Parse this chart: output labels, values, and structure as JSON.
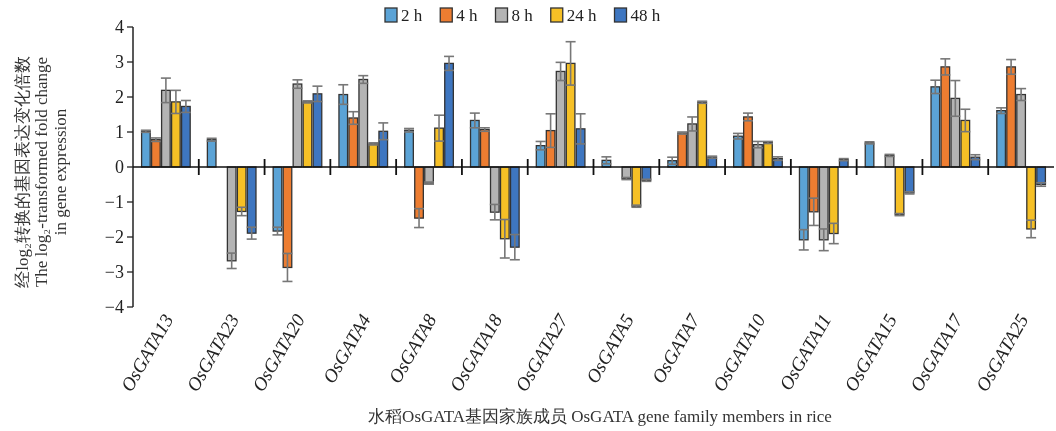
{
  "chart_data": {
    "type": "bar",
    "xlabel": "水稻OsGATA基因家族成员  OsGATA gene family members in rice",
    "ylabel": "经log₂转换的基因表达变化倍数\nThe log₂-transformed fold change\nin gene expression",
    "categories": [
      "OsGATA13",
      "OsGATA23",
      "OsGATA20",
      "OsGATA4",
      "OsGATA8",
      "OsGATA18",
      "OsGATA27",
      "OsGATA5",
      "OsGATA7",
      "OsGATA10",
      "OsGATA11",
      "OsGATA15",
      "OsGATA17",
      "OsGATA25"
    ],
    "ylim": [
      -4,
      4
    ],
    "yticks": [
      {
        "value": -4,
        "label": "−4"
      },
      {
        "value": -3,
        "label": "−3"
      },
      {
        "value": -2,
        "label": "−2"
      },
      {
        "value": -1,
        "label": "−1"
      },
      0,
      1,
      2,
      3,
      4
    ],
    "legend": "top",
    "series": [
      {
        "name": "2 h",
        "color": "#5ba3d6",
        "values": [
          1.02,
          0.78,
          -1.83,
          2.07,
          1.05,
          1.33,
          0.61,
          0.19,
          0.18,
          0.88,
          -2.08,
          0.69,
          2.29,
          1.61
        ],
        "errors": [
          0.03,
          0.04,
          0.11,
          0.28,
          0.05,
          0.21,
          0.12,
          0.1,
          0.1,
          0.08,
          0.29,
          0.03,
          0.19,
          0.08
        ]
      },
      {
        "name": "4 h",
        "color": "#ed7d31",
        "values": [
          0.78,
          null,
          -2.87,
          1.4,
          -1.46,
          1.07,
          1.04,
          null,
          0.97,
          1.43,
          -1.28,
          null,
          2.86,
          2.86
        ],
        "errors": [
          0.05,
          null,
          0.4,
          0.18,
          0.27,
          0.05,
          0.48,
          null,
          0.03,
          0.11,
          0.39,
          null,
          0.23,
          0.21
        ]
      },
      {
        "name": "8 h",
        "color": "#b4b4b4",
        "values": [
          2.19,
          -2.68,
          2.37,
          2.5,
          -0.46,
          -1.29,
          2.73,
          -0.33,
          1.23,
          0.64,
          -2.08,
          0.33,
          1.96,
          2.07
        ],
        "errors": [
          0.35,
          0.22,
          0.12,
          0.11,
          0.03,
          0.22,
          0.26,
          0.03,
          0.2,
          0.09,
          0.31,
          0.03,
          0.51,
          0.17
        ]
      },
      {
        "name": "24 h",
        "color": "#f6c026",
        "values": [
          1.86,
          -1.27,
          1.86,
          0.66,
          1.11,
          -2.05,
          2.96,
          -1.12,
          1.85,
          0.7,
          -1.9,
          -1.36,
          1.33,
          -1.77
        ],
        "errors": [
          0.33,
          0.12,
          0.03,
          0.03,
          0.37,
          0.55,
          0.62,
          0.03,
          0.03,
          0.03,
          0.29,
          0.03,
          0.32,
          0.25
        ]
      },
      {
        "name": "48 h",
        "color": "#3e76c0",
        "values": [
          1.73,
          -1.89,
          2.09,
          1.02,
          2.96,
          -2.29,
          1.09,
          -0.38,
          0.28,
          0.24,
          0.21,
          -0.74,
          0.28,
          -0.5
        ],
        "errors": [
          0.17,
          0.17,
          0.22,
          0.24,
          0.2,
          0.36,
          0.43,
          0.03,
          0.03,
          0.05,
          0.03,
          0.03,
          0.07,
          0.05
        ]
      }
    ]
  }
}
